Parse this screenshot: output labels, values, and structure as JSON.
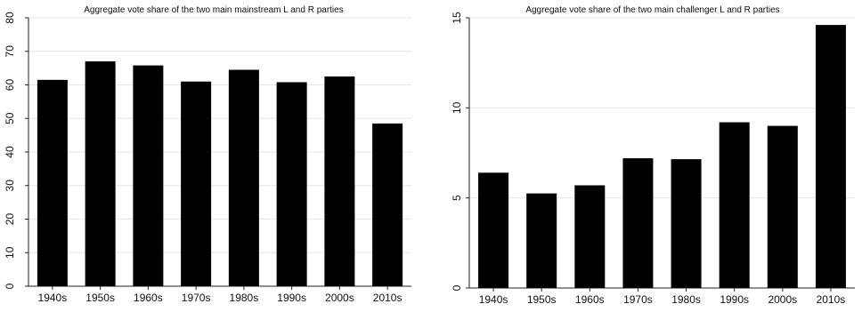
{
  "chart_data": [
    {
      "type": "bar",
      "title": "Aggregate vote share of the two main mainstream L and R parties",
      "categories": [
        "1940s",
        "1950s",
        "1960s",
        "1970s",
        "1980s",
        "1990s",
        "2000s",
        "2010s"
      ],
      "values": [
        61.5,
        67.0,
        65.8,
        61.0,
        64.5,
        60.8,
        62.5,
        48.5
      ],
      "ylim": [
        0,
        80
      ],
      "yticks": [
        0,
        10,
        20,
        30,
        40,
        50,
        60,
        70,
        80
      ],
      "grid": true,
      "bar_color": "#000000"
    },
    {
      "type": "bar",
      "title": "Aggregate vote share of the two main challenger L and R parties",
      "categories": [
        "1940s",
        "1950s",
        "1960s",
        "1970s",
        "1980s",
        "1990s",
        "2000s",
        "2010s"
      ],
      "values": [
        6.4,
        5.25,
        5.7,
        7.2,
        7.15,
        9.2,
        9.0,
        14.6
      ],
      "ylim": [
        0,
        15
      ],
      "yticks": [
        0,
        5,
        10,
        15
      ],
      "grid": true,
      "bar_color": "#000000"
    }
  ]
}
